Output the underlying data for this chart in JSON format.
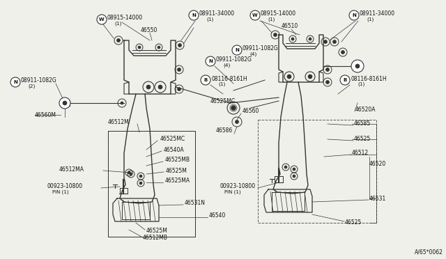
{
  "bg_color": "#f0f0eb",
  "line_color": "#333333",
  "text_color": "#111111",
  "watermark": "A/65*0062",
  "fig_w": 6.4,
  "fig_h": 3.72,
  "xlim": [
    0,
    640
  ],
  "ylim": [
    0,
    372
  ]
}
